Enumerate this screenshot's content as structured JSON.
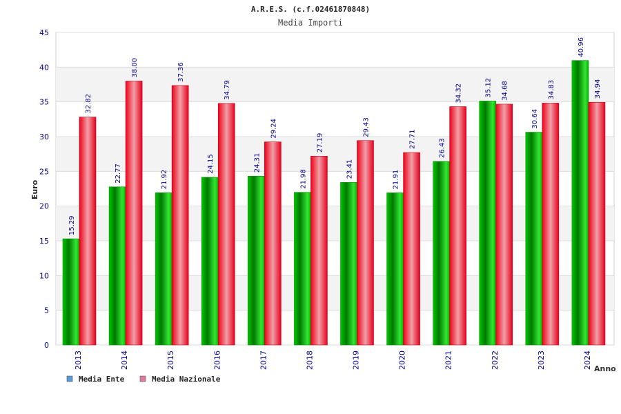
{
  "chart_data": {
    "type": "bar",
    "title": "A.R.E.S. (c.f.02461870848)",
    "subtitle": "Media Importi",
    "xlabel": "Anno",
    "ylabel": "Euro",
    "ylim": [
      0,
      45
    ],
    "yticks": [
      0,
      5,
      10,
      15,
      20,
      25,
      30,
      35,
      40,
      45
    ],
    "categories": [
      "2013",
      "2014",
      "2015",
      "2016",
      "2017",
      "2018",
      "2019",
      "2020",
      "2021",
      "2022",
      "2023",
      "2024"
    ],
    "series": [
      {
        "name": "Media Ente",
        "color": "#00b400",
        "legend_color": "#5b9bd5",
        "values": [
          15.29,
          22.77,
          21.92,
          24.15,
          24.31,
          21.98,
          23.41,
          21.91,
          26.43,
          35.12,
          30.64,
          40.96
        ],
        "labels": [
          "15.29",
          "22.77",
          "21.92",
          "24.15",
          "24.31",
          "21.98",
          "23.41",
          "21.91",
          "26.43",
          "35.12",
          "30.64",
          "40.96"
        ]
      },
      {
        "name": "Media Nazionale",
        "color": "#e8001c",
        "legend_color": "#e07aa0",
        "values": [
          32.82,
          38.0,
          37.36,
          34.79,
          29.24,
          27.19,
          29.43,
          27.71,
          34.32,
          34.68,
          34.83,
          34.94
        ],
        "labels": [
          "32.82",
          "38.00",
          "37.36",
          "34.79",
          "29.24",
          "27.19",
          "29.43",
          "27.71",
          "34.32",
          "34.68",
          "34.83",
          "34.94"
        ]
      }
    ],
    "grid": true,
    "legend_position": "bottom-left"
  }
}
